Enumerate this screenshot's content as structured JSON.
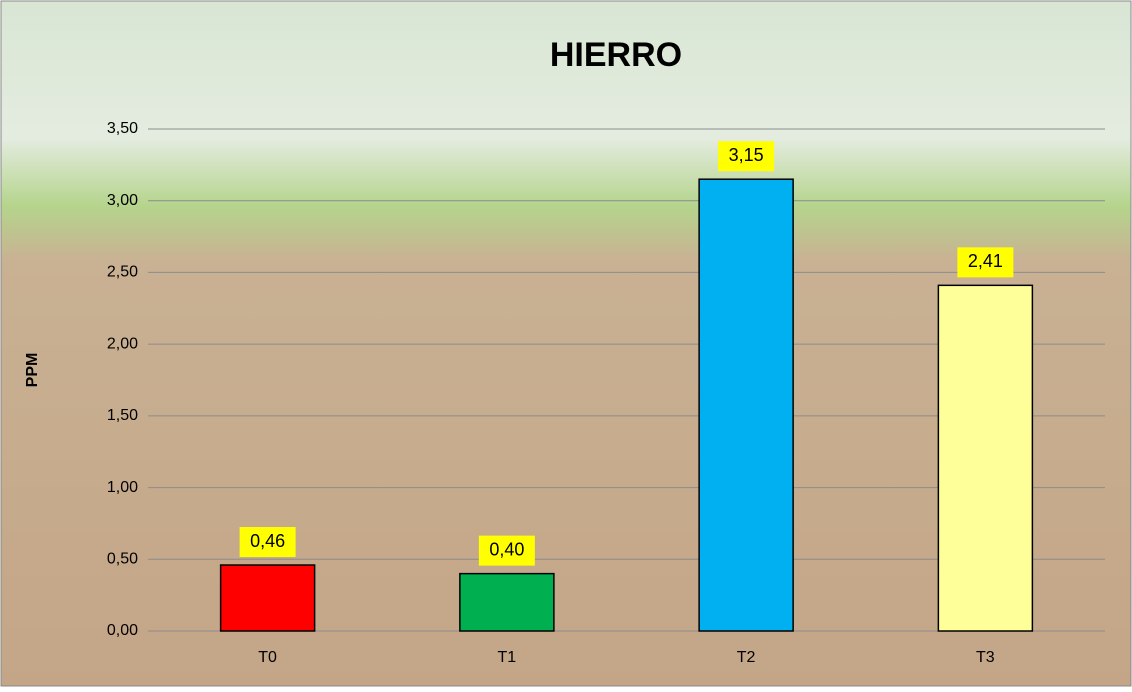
{
  "chart_data": {
    "type": "bar",
    "title": "HIERRO",
    "y_label": "PPM",
    "categories": [
      "T0",
      "T1",
      "T2",
      "T3"
    ],
    "values": [
      0.46,
      0.4,
      3.15,
      2.41
    ],
    "value_labels": [
      "0,46",
      "0,40",
      "3,15",
      "2,41"
    ],
    "colors": [
      "#ff0000",
      "#00b050",
      "#00b0f0",
      "#ffff99"
    ],
    "ylim": [
      0,
      3.5
    ],
    "yticks": [
      {
        "value": 0,
        "label": "0,00"
      },
      {
        "value": 0.5,
        "label": "0,50"
      },
      {
        "value": 1,
        "label": "1,00"
      },
      {
        "value": 1.5,
        "label": "1,50"
      },
      {
        "value": 2,
        "label": "2,00"
      },
      {
        "value": 2.5,
        "label": "2,50"
      },
      {
        "value": 3,
        "label": "3,00"
      },
      {
        "value": 3.5,
        "label": "3,50"
      }
    ],
    "grid": true
  }
}
